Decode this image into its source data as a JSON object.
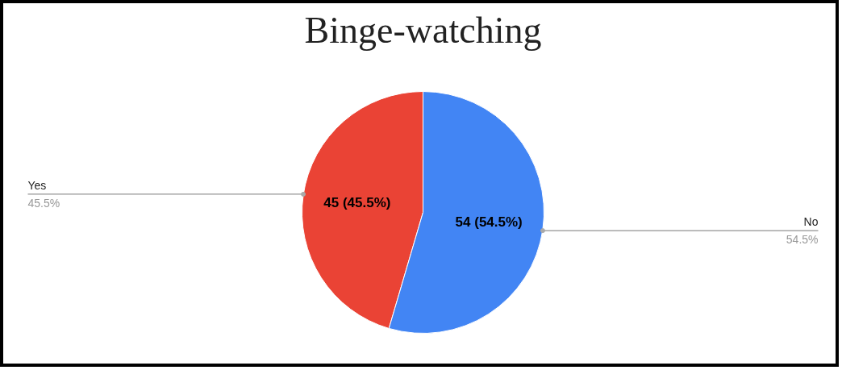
{
  "chart_data": {
    "type": "pie",
    "title": "Binge-watching",
    "categories": [
      "Yes",
      "No"
    ],
    "values": [
      45,
      54
    ],
    "colors": [
      "#ea4335",
      "#4285f4"
    ],
    "value_labels": [
      "45 (45.5%)",
      "54 (54.5%)"
    ],
    "annotations": [
      "45.5%",
      "54.5%"
    ]
  }
}
